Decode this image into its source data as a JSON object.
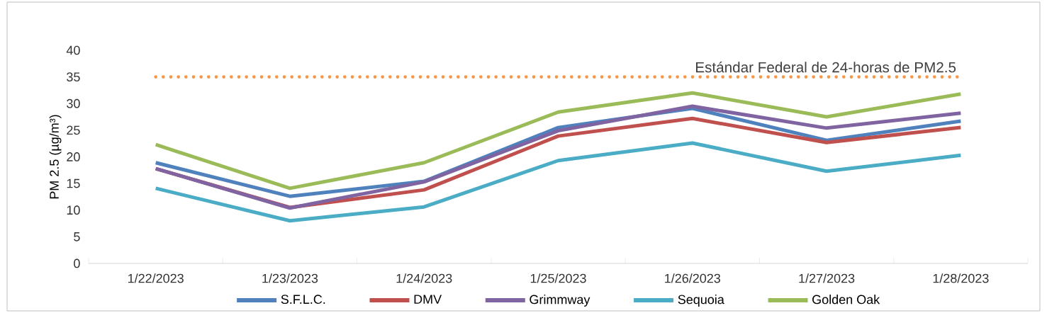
{
  "chart_data": {
    "type": "line",
    "categories": [
      "1/22/2023",
      "1/23/2023",
      "1/24/2023",
      "1/25/2023",
      "1/26/2023",
      "1/27/2023",
      "1/28/2023"
    ],
    "series": [
      {
        "name": "S.F.L.C.",
        "color": "#4f81bd",
        "values": [
          18.9,
          12.6,
          15.4,
          25.5,
          29.1,
          23.1,
          26.7
        ]
      },
      {
        "name": "DMV",
        "color": "#c0504d",
        "values": [
          17.8,
          10.5,
          13.8,
          23.9,
          27.2,
          22.7,
          25.5
        ]
      },
      {
        "name": "Grimmway",
        "color": "#8064a2",
        "values": [
          17.8,
          10.4,
          15.3,
          24.9,
          29.5,
          25.4,
          28.2
        ]
      },
      {
        "name": "Sequoia",
        "color": "#4bacc6",
        "values": [
          14.1,
          8.0,
          10.6,
          19.3,
          22.6,
          17.3,
          20.3
        ]
      },
      {
        "name": "Golden Oak",
        "color": "#9bbb59",
        "values": [
          22.3,
          14.1,
          18.9,
          28.4,
          32.0,
          27.5,
          31.8
        ]
      }
    ],
    "ylabel": "PM 2.5 (µg/m³)",
    "ylim": [
      0,
      40
    ],
    "yticks": [
      0,
      5,
      10,
      15,
      20,
      25,
      30,
      35,
      40
    ],
    "ref_lines": [
      {
        "axis": "y",
        "value": 35,
        "label": "Estándar Federal de 24-horas de PM2.5",
        "color": "#f79646",
        "line_style": "dotted"
      }
    ],
    "legend": "bottom",
    "marker": "none",
    "line_style": "solid"
  }
}
